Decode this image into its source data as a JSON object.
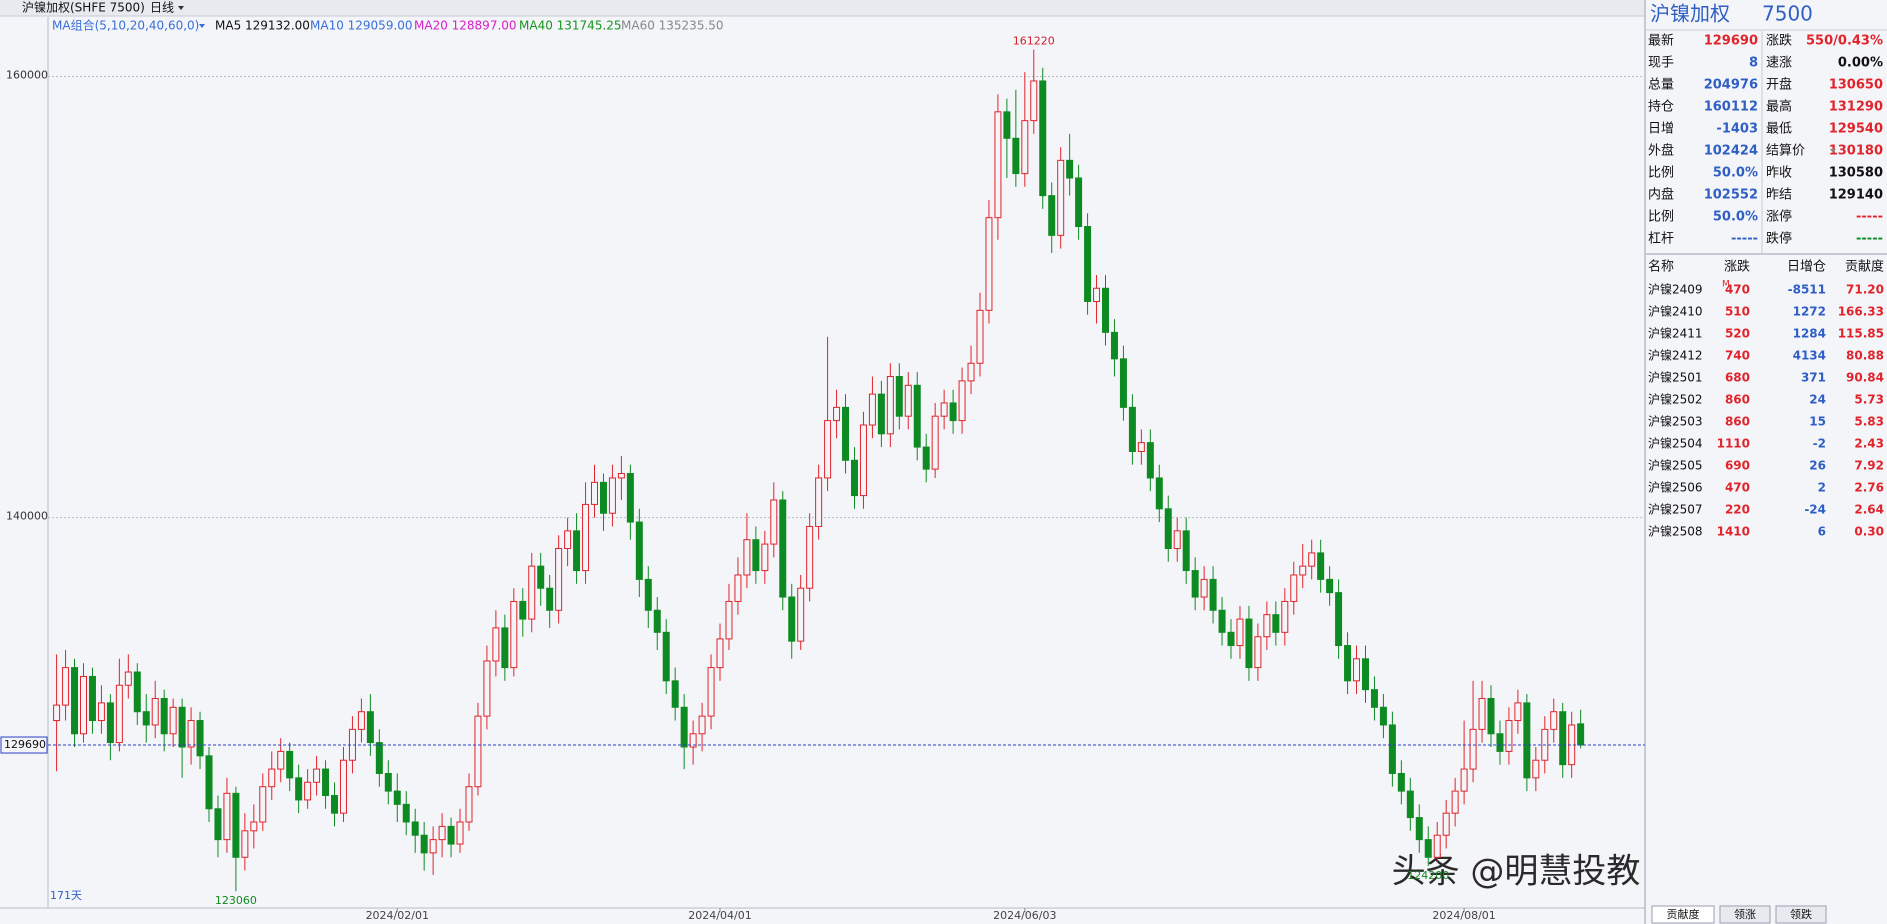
{
  "header": {
    "symbol": "沪镍加权(SHFE 7500)",
    "period": "日线"
  },
  "legend": {
    "group": "MA组合(5,10,20,40,60,0)",
    "items": [
      {
        "text": "MA5 129132.00",
        "color": "#111111"
      },
      {
        "text": "MA10 129059.00",
        "color": "#3a6fd8"
      },
      {
        "text": "MA20 128897.00",
        "color": "#d81ec8"
      },
      {
        "text": "MA40 131745.25",
        "color": "#18961f"
      },
      {
        "text": "MA60 135235.50",
        "color": "#888888"
      }
    ]
  },
  "chart_data": {
    "type": "candlestick",
    "day_count": "171天",
    "ylim": [
      122300,
      162700
    ],
    "yticks": [
      140000,
      160000
    ],
    "grid": true,
    "up_color": "#e0242b",
    "down_color": "#0e8a22",
    "categories": [
      null,
      null,
      null,
      null,
      null,
      null,
      null,
      null,
      null,
      null,
      null,
      null,
      null,
      null,
      null,
      null,
      null,
      null,
      null,
      null,
      null,
      null,
      null,
      null,
      null,
      null,
      null,
      null,
      null,
      null,
      null,
      null,
      null,
      null,
      null,
      null,
      null,
      null,
      "2024/02/01",
      null,
      null,
      null,
      null,
      null,
      null,
      null,
      null,
      null,
      null,
      null,
      null,
      null,
      null,
      null,
      null,
      null,
      null,
      null,
      null,
      null,
      null,
      null,
      null,
      null,
      null,
      null,
      null,
      null,
      null,
      null,
      null,
      null,
      null,
      null,
      "2024/04/01",
      null,
      null,
      null,
      null,
      null,
      null,
      null,
      null,
      null,
      null,
      null,
      null,
      null,
      null,
      null,
      null,
      null,
      null,
      null,
      null,
      null,
      null,
      null,
      null,
      null,
      null,
      null,
      null,
      null,
      null,
      null,
      null,
      null,
      "2024/06/03",
      null,
      null,
      null,
      null,
      null,
      null,
      null,
      null,
      null,
      null,
      null,
      null,
      null,
      null,
      null,
      null,
      null,
      null,
      null,
      null,
      null,
      null,
      null,
      null,
      null,
      null,
      null,
      null,
      null,
      null,
      null,
      null,
      null,
      null,
      null,
      null,
      null,
      null,
      null,
      null,
      null,
      null,
      null,
      null,
      null,
      null,
      null,
      null,
      "2024/08/01",
      null,
      null,
      null,
      null,
      null,
      null,
      null,
      null,
      null,
      null,
      null,
      null,
      null
    ],
    "open": [
      130800,
      131500,
      133200,
      130200,
      132800,
      130800,
      131600,
      129800,
      132400,
      133000,
      131200,
      130600,
      131800,
      130200,
      131400,
      129600,
      130800,
      129200,
      126800,
      125400,
      127500,
      124600,
      125800,
      126200,
      127800,
      128600,
      129400,
      128200,
      127200,
      128000,
      128600,
      127400,
      126600,
      129000,
      130400,
      131200,
      129800,
      128400,
      127600,
      127000,
      126200,
      125600,
      124800,
      125400,
      126000,
      125200,
      126200,
      127800,
      131000,
      133500,
      135000,
      133200,
      136200,
      135400,
      137800,
      136800,
      135800,
      138600,
      139400,
      137600,
      140600,
      141600,
      140200,
      141800,
      142000,
      139800,
      137200,
      135800,
      134800,
      132600,
      131400,
      129600,
      130200,
      131000,
      133200,
      134500,
      136200,
      137400,
      139000,
      137600,
      138800,
      140800,
      136400,
      134400,
      136800,
      139600,
      141800,
      144400,
      145000,
      142600,
      141000,
      144200,
      145600,
      143800,
      146400,
      144600,
      146000,
      143200,
      142200,
      144600,
      145200,
      144400,
      146200,
      147000,
      149400,
      153600,
      158400,
      157200,
      155600,
      158000,
      159800,
      154600,
      152800,
      156200,
      155400,
      153200,
      149800,
      150400,
      148400,
      147200,
      145000,
      143000,
      143400,
      141800,
      140400,
      138600,
      139400,
      137600,
      136400,
      137200,
      135800,
      134800,
      134200,
      135400,
      133200,
      134600,
      135600,
      134800,
      136200,
      137400,
      137800,
      138400,
      137200,
      136600,
      134200,
      132600,
      133600,
      132200,
      131400,
      130600,
      128400,
      127600,
      126400,
      125400,
      124600,
      125600,
      126600,
      127600,
      128600,
      130400,
      131800,
      130200,
      129400,
      130800,
      131600,
      128200,
      129000,
      130400,
      131200,
      128800,
      130650
    ],
    "high": [
      133800,
      134000,
      133600,
      133400,
      133200,
      132400,
      132000,
      133600,
      133800,
      133400,
      132000,
      132600,
      132200,
      131800,
      131800,
      131400,
      131200,
      129600,
      127400,
      128200,
      127800,
      126600,
      127000,
      128400,
      129400,
      130000,
      129800,
      128800,
      128600,
      129200,
      129000,
      128000,
      129600,
      131000,
      131800,
      132000,
      130400,
      129000,
      128400,
      127600,
      126800,
      126200,
      126000,
      126600,
      126400,
      126800,
      128400,
      131600,
      134200,
      135800,
      135600,
      136800,
      136800,
      138400,
      138400,
      137400,
      139200,
      140000,
      140200,
      141600,
      142400,
      142000,
      142400,
      142800,
      142400,
      140400,
      137800,
      136400,
      135400,
      133200,
      132000,
      130800,
      131600,
      133800,
      135200,
      137000,
      138200,
      140200,
      139600,
      139400,
      141600,
      141200,
      137000,
      137400,
      140200,
      142400,
      148200,
      145800,
      145600,
      143200,
      144800,
      146400,
      146200,
      147000,
      147000,
      146600,
      146600,
      143800,
      145200,
      145800,
      145800,
      146800,
      147800,
      150200,
      154400,
      159200,
      159000,
      159400,
      160200,
      161220,
      160400,
      155200,
      156800,
      157400,
      156000,
      153800,
      151000,
      151000,
      149000,
      147800,
      145600,
      144000,
      144000,
      142400,
      141000,
      140000,
      140000,
      138200,
      137800,
      137800,
      136400,
      135400,
      136000,
      136000,
      135200,
      136200,
      136200,
      136800,
      138000,
      138800,
      139000,
      139000,
      137800,
      137200,
      134800,
      134200,
      134200,
      132800,
      132000,
      131200,
      129000,
      128200,
      127000,
      126000,
      126200,
      127200,
      128200,
      130800,
      132600,
      132600,
      132400,
      130800,
      131400,
      132200,
      132000,
      129600,
      131000,
      131800,
      131600,
      131200,
      131290
    ],
    "low": [
      128500,
      130800,
      129600,
      129800,
      130200,
      130200,
      129000,
      129400,
      131800,
      130600,
      129800,
      130000,
      129400,
      129600,
      128200,
      128800,
      128600,
      126200,
      124600,
      124800,
      123060,
      124000,
      125000,
      125800,
      127200,
      128000,
      127600,
      126600,
      126800,
      127400,
      126800,
      126000,
      126200,
      128400,
      129800,
      129200,
      127800,
      127000,
      126200,
      125600,
      124800,
      124000,
      123800,
      124600,
      124600,
      124800,
      125800,
      127400,
      130400,
      132800,
      132600,
      132800,
      134600,
      134800,
      136000,
      135000,
      135200,
      137800,
      137000,
      137000,
      140000,
      139400,
      139600,
      140800,
      139000,
      136400,
      135000,
      134000,
      132000,
      130800,
      128600,
      128800,
      129400,
      130400,
      132600,
      134000,
      135600,
      136800,
      137000,
      137000,
      138200,
      135800,
      133600,
      134000,
      136200,
      139000,
      141200,
      143600,
      142000,
      140400,
      140400,
      143600,
      143200,
      143200,
      144000,
      144000,
      142600,
      141600,
      141800,
      144000,
      143800,
      143800,
      145600,
      146400,
      148800,
      152600,
      155400,
      155000,
      155000,
      157400,
      154000,
      152000,
      152200,
      154600,
      152600,
      149200,
      148800,
      147800,
      146400,
      144400,
      142400,
      142400,
      141200,
      139800,
      138000,
      138000,
      137000,
      135800,
      135800,
      135200,
      134200,
      133600,
      133600,
      132600,
      132600,
      134000,
      134200,
      134200,
      135600,
      136800,
      137200,
      136600,
      136000,
      133600,
      132000,
      132000,
      131600,
      130800,
      130000,
      127800,
      127000,
      125800,
      124800,
      124200,
      124400,
      125000,
      126000,
      127000,
      128000,
      129800,
      129600,
      128800,
      128800,
      130200,
      127600,
      127600,
      128400,
      129800,
      128200,
      128200,
      129540
    ],
    "close": [
      131500,
      133200,
      130200,
      132800,
      130800,
      131600,
      129800,
      132400,
      133000,
      131200,
      130600,
      131800,
      130200,
      131400,
      129600,
      130800,
      129200,
      126800,
      125400,
      127500,
      124600,
      125800,
      126200,
      127800,
      128600,
      129400,
      128200,
      127200,
      128000,
      128600,
      127400,
      126600,
      129000,
      130400,
      131200,
      129800,
      128400,
      127600,
      127000,
      126200,
      125600,
      124800,
      125400,
      126000,
      125200,
      126200,
      127800,
      131000,
      133500,
      135000,
      133200,
      136200,
      135400,
      137800,
      136800,
      135800,
      138600,
      139400,
      137600,
      140600,
      141600,
      140200,
      141800,
      142000,
      139800,
      137200,
      135800,
      134800,
      132600,
      131400,
      129600,
      130200,
      131000,
      133200,
      134500,
      136200,
      137400,
      139000,
      137600,
      138800,
      140800,
      136400,
      134400,
      136800,
      139600,
      141800,
      144400,
      145000,
      142600,
      141000,
      144200,
      145600,
      143800,
      146400,
      144600,
      146000,
      143200,
      142200,
      144600,
      145200,
      144400,
      146200,
      147000,
      149400,
      153600,
      158400,
      157200,
      155600,
      158000,
      159800,
      154600,
      152800,
      156200,
      155400,
      153200,
      149800,
      150400,
      148400,
      147200,
      145000,
      143000,
      143400,
      141800,
      140400,
      138600,
      139400,
      137600,
      136400,
      137200,
      135800,
      134800,
      134200,
      135400,
      133200,
      134600,
      135600,
      134800,
      136200,
      137400,
      137800,
      138400,
      137200,
      136600,
      134200,
      132600,
      133600,
      132200,
      131400,
      130600,
      128400,
      127600,
      126400,
      125400,
      124600,
      125600,
      126600,
      127600,
      128600,
      130400,
      131800,
      130200,
      129400,
      130800,
      131600,
      128200,
      129000,
      130400,
      131200,
      128800,
      130600,
      129690
    ]
  },
  "quote": {
    "title": "沪镍加权",
    "code": "7500",
    "rows": [
      [
        "最新",
        "129690",
        "涨跌",
        "550/0.43%"
      ],
      [
        "现手",
        "8",
        "速涨",
        "0.00%"
      ],
      [
        "总量",
        "204976",
        "开盘",
        "130650"
      ],
      [
        "持仓",
        "160112",
        "最高",
        "131290"
      ],
      [
        "日增",
        "-1403",
        "最低",
        "129540"
      ],
      [
        "外盘",
        "102424",
        "结算价",
        "130180"
      ],
      [
        "比例",
        "50.0%",
        "昨收",
        "130580"
      ],
      [
        "内盘",
        "102552",
        "昨结",
        "129140"
      ],
      [
        "比例",
        "50.0%",
        "涨停",
        "-----"
      ],
      [
        "杠杆",
        "-----",
        "跌停",
        "-----"
      ]
    ]
  },
  "table": {
    "columns": [
      "名称",
      "涨跌",
      "日增仓",
      "贡献度"
    ],
    "marker": "M",
    "rows": [
      [
        "沪镍2409",
        "470",
        "-8511",
        "71.20"
      ],
      [
        "沪镍2410",
        "510",
        "1272",
        "166.33"
      ],
      [
        "沪镍2411",
        "520",
        "1284",
        "115.85"
      ],
      [
        "沪镍2412",
        "740",
        "4134",
        "80.88"
      ],
      [
        "沪镍2501",
        "680",
        "371",
        "90.84"
      ],
      [
        "沪镍2502",
        "860",
        "24",
        "5.73"
      ],
      [
        "沪镍2503",
        "860",
        "15",
        "5.83"
      ],
      [
        "沪镍2504",
        "1110",
        "-2",
        "2.43"
      ],
      [
        "沪镍2505",
        "690",
        "26",
        "7.92"
      ],
      [
        "沪镍2506",
        "470",
        "2",
        "2.76"
      ],
      [
        "沪镍2507",
        "220",
        "-24",
        "2.64"
      ],
      [
        "沪镍2508",
        "1410",
        "6",
        "0.30"
      ]
    ]
  },
  "tabs": [
    "贡献度",
    "领涨",
    "领跌"
  ],
  "watermark": "头条 @明慧投教"
}
